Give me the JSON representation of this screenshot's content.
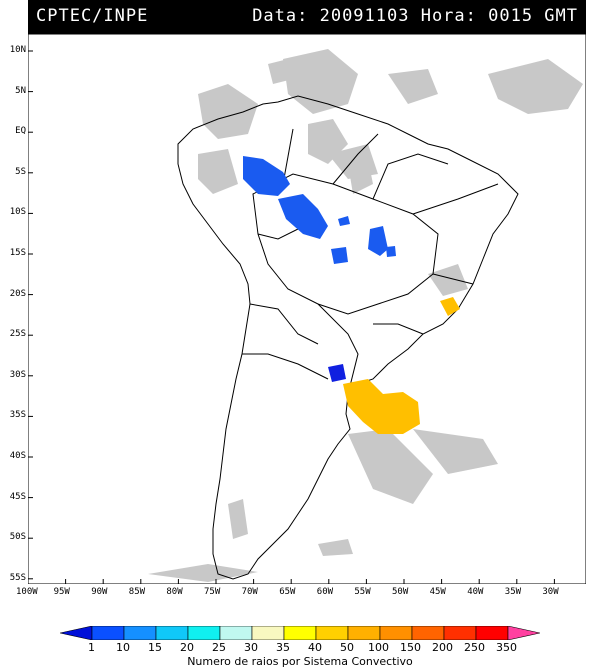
{
  "header": {
    "left": "CPTEC/INPE",
    "right": "Data: 20091103 Hora: 0015 GMT"
  },
  "map": {
    "lat_labels": [
      "10N",
      "5N",
      "EQ",
      "5S",
      "10S",
      "15S",
      "20S",
      "25S",
      "30S",
      "35S",
      "40S",
      "45S",
      "50S",
      "55S"
    ],
    "lon_labels": [
      "100W",
      "95W",
      "90W",
      "85W",
      "80W",
      "75W",
      "70W",
      "65W",
      "60W",
      "55W",
      "50W",
      "45W",
      "40W",
      "35W",
      "30W"
    ],
    "colors": {
      "cloud": "#c8c8c8",
      "land_outline": "#000000",
      "blue_systems": "#1a5bf0",
      "dark_blue_system": "#1020e0",
      "yellow_systems": "#ffbf00"
    }
  },
  "colorbar": {
    "ticks": [
      "1",
      "10",
      "15",
      "20",
      "25",
      "30",
      "35",
      "40",
      "50",
      "100",
      "150",
      "200",
      "250",
      "350"
    ],
    "colors": [
      "#0010d8",
      "#0a50ff",
      "#1590ff",
      "#10c8f8",
      "#10f0f0",
      "#c0f8f0",
      "#f8f8c0",
      "#ffff00",
      "#ffd000",
      "#ffb000",
      "#ff9000",
      "#ff6400",
      "#ff3000",
      "#ff0000",
      "#ff40a0"
    ],
    "caption": "Numero de raios por Sistema Convectivo"
  }
}
